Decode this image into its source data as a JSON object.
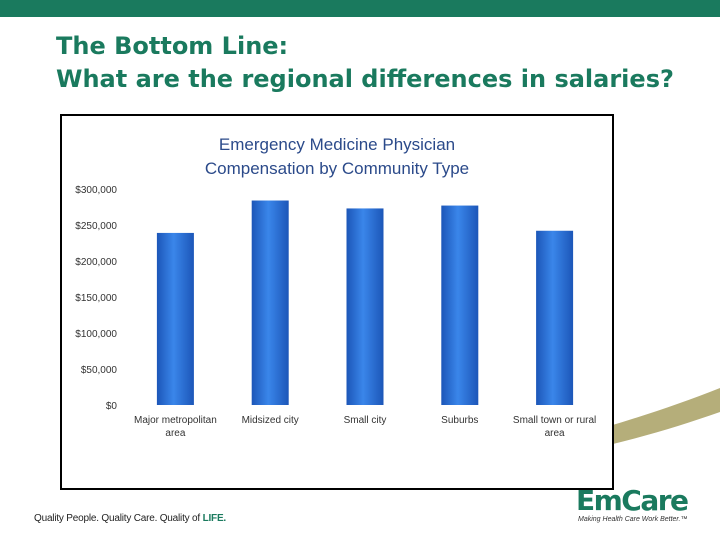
{
  "slide": {
    "title_line1": "The Bottom Line:",
    "title_line2": "What are the regional differences in salaries?",
    "footer_prefix": "Quality People. Quality Care. Quality of ",
    "footer_life": "LIFE.",
    "logo_text": "EmCare",
    "logo_tagline": "Making Health Care Work Better.™"
  },
  "colors": {
    "accent": "#1a7a5e",
    "bar": "#2a6fd6",
    "swoosh": "#b5ae7a"
  },
  "chart_data": {
    "type": "bar",
    "title_line1": "Emergency Medicine Physician",
    "title_line2": "Compensation by Community Type",
    "categories": [
      [
        "Major metropolitan",
        "area"
      ],
      [
        "Midsized city"
      ],
      [
        "Small city"
      ],
      [
        "Suburbs"
      ],
      [
        "Small town or rural",
        "area"
      ]
    ],
    "values": [
      239000,
      284000,
      273000,
      277000,
      242000
    ],
    "ylim": [
      0,
      300000
    ],
    "yticks": [
      0,
      50000,
      100000,
      150000,
      200000,
      250000,
      300000
    ],
    "ytick_labels": [
      "$0",
      "$50,000",
      "$100,000",
      "$150,000",
      "$200,000",
      "$250,000",
      "$300,000"
    ],
    "grid": false,
    "legend": "none"
  }
}
